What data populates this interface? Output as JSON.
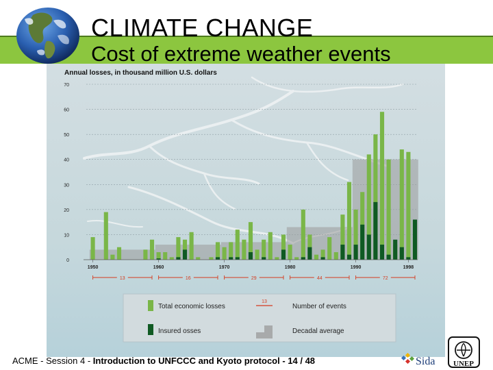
{
  "slide": {
    "title": "CLIMATE CHANGE",
    "subtitle": "Cost of extreme weather events",
    "footer_prefix": "ACME - Session 4 - ",
    "footer_bold": "Introduction to UNFCCC and Kyoto protocol - 14 / 48",
    "logo_sida": "Sida",
    "logo_unep": "UNEP"
  },
  "colors": {
    "header_band": "#8cc63f",
    "total_losses": "#7ab648",
    "insured_losses": "#0f5a23",
    "decadal_average": "#9a9a9a",
    "events_line": "#d53b1f"
  },
  "chart_data": {
    "type": "bar",
    "ylabel": "Annual losses, in thousand million U.S. dollars",
    "ylim": [
      0,
      70
    ],
    "yticks": [
      0,
      10,
      20,
      30,
      40,
      50,
      60,
      70
    ],
    "xlim": [
      1949,
      1999
    ],
    "xticks": [
      {
        "year": 1950,
        "label": "1950"
      },
      {
        "year": 1960,
        "label": "1960"
      },
      {
        "year": 1970,
        "label": "1970"
      },
      {
        "year": 1980,
        "label": "1980"
      },
      {
        "year": 1990,
        "label": "1990"
      },
      {
        "year": 1998,
        "label": "1998"
      }
    ],
    "series": [
      {
        "name": "Total economic losses",
        "values": [
          {
            "year": 1950,
            "value": 9
          },
          {
            "year": 1952,
            "value": 19
          },
          {
            "year": 1953,
            "value": 2
          },
          {
            "year": 1954,
            "value": 5
          },
          {
            "year": 1958,
            "value": 4
          },
          {
            "year": 1959,
            "value": 8
          },
          {
            "year": 1960,
            "value": 3
          },
          {
            "year": 1961,
            "value": 3
          },
          {
            "year": 1962,
            "value": 1
          },
          {
            "year": 1963,
            "value": 9
          },
          {
            "year": 1964,
            "value": 8
          },
          {
            "year": 1965,
            "value": 11
          },
          {
            "year": 1966,
            "value": 1
          },
          {
            "year": 1968,
            "value": 1
          },
          {
            "year": 1969,
            "value": 7
          },
          {
            "year": 1970,
            "value": 5
          },
          {
            "year": 1971,
            "value": 7
          },
          {
            "year": 1972,
            "value": 12
          },
          {
            "year": 1973,
            "value": 8
          },
          {
            "year": 1974,
            "value": 15
          },
          {
            "year": 1975,
            "value": 4
          },
          {
            "year": 1976,
            "value": 8
          },
          {
            "year": 1977,
            "value": 11
          },
          {
            "year": 1978,
            "value": 1
          },
          {
            "year": 1979,
            "value": 10
          },
          {
            "year": 1980,
            "value": 6
          },
          {
            "year": 1981,
            "value": 1
          },
          {
            "year": 1982,
            "value": 20
          },
          {
            "year": 1983,
            "value": 10
          },
          {
            "year": 1984,
            "value": 2
          },
          {
            "year": 1985,
            "value": 4
          },
          {
            "year": 1986,
            "value": 9
          },
          {
            "year": 1987,
            "value": 3
          },
          {
            "year": 1988,
            "value": 18
          },
          {
            "year": 1989,
            "value": 31
          },
          {
            "year": 1990,
            "value": 20
          },
          {
            "year": 1991,
            "value": 27
          },
          {
            "year": 1992,
            "value": 42
          },
          {
            "year": 1993,
            "value": 50
          },
          {
            "year": 1994,
            "value": 59
          },
          {
            "year": 1995,
            "value": 40
          },
          {
            "year": 1996,
            "value": 6
          },
          {
            "year": 1997,
            "value": 44
          },
          {
            "year": 1998,
            "value": 43
          },
          {
            "year": 1999,
            "value": 9
          }
        ]
      },
      {
        "name": "Insured losses",
        "values": [
          {
            "year": 1960,
            "value": 0.5
          },
          {
            "year": 1963,
            "value": 1
          },
          {
            "year": 1964,
            "value": 4
          },
          {
            "year": 1969,
            "value": 1
          },
          {
            "year": 1971,
            "value": 1
          },
          {
            "year": 1972,
            "value": 1
          },
          {
            "year": 1974,
            "value": 3
          },
          {
            "year": 1976,
            "value": 1
          },
          {
            "year": 1979,
            "value": 4
          },
          {
            "year": 1982,
            "value": 1
          },
          {
            "year": 1983,
            "value": 5
          },
          {
            "year": 1985,
            "value": 1
          },
          {
            "year": 1988,
            "value": 6
          },
          {
            "year": 1989,
            "value": 2
          },
          {
            "year": 1990,
            "value": 6
          },
          {
            "year": 1991,
            "value": 14
          },
          {
            "year": 1992,
            "value": 10
          },
          {
            "year": 1993,
            "value": 23
          },
          {
            "year": 1994,
            "value": 6
          },
          {
            "year": 1995,
            "value": 2
          },
          {
            "year": 1996,
            "value": 8
          },
          {
            "year": 1997,
            "value": 5
          },
          {
            "year": 1998,
            "value": 1
          },
          {
            "year": 1999,
            "value": 16
          }
        ]
      },
      {
        "name": "Decadal average",
        "values": [
          {
            "start": 1950,
            "end": 1959,
            "value": 4
          },
          {
            "start": 1960,
            "end": 1969,
            "value": 6
          },
          {
            "start": 1970,
            "end": 1979,
            "value": 7
          },
          {
            "start": 1980,
            "end": 1989,
            "value": 13
          },
          {
            "start": 1990,
            "end": 1999,
            "value": 40
          }
        ]
      }
    ],
    "events": [
      {
        "start": 1950,
        "end": 1959,
        "label": "13"
      },
      {
        "start": 1960,
        "end": 1969,
        "label": "16"
      },
      {
        "start": 1970,
        "end": 1979,
        "label": "29"
      },
      {
        "start": 1980,
        "end": 1989,
        "label": "44"
      },
      {
        "start": 1990,
        "end": 1999,
        "label": "72"
      }
    ],
    "legend": [
      {
        "key": "total",
        "label": "Total economic losses"
      },
      {
        "key": "events",
        "label": "Number of events",
        "sample": "13"
      },
      {
        "key": "insured",
        "label": "Insured osses"
      },
      {
        "key": "average",
        "label": "Decadal average"
      }
    ]
  }
}
